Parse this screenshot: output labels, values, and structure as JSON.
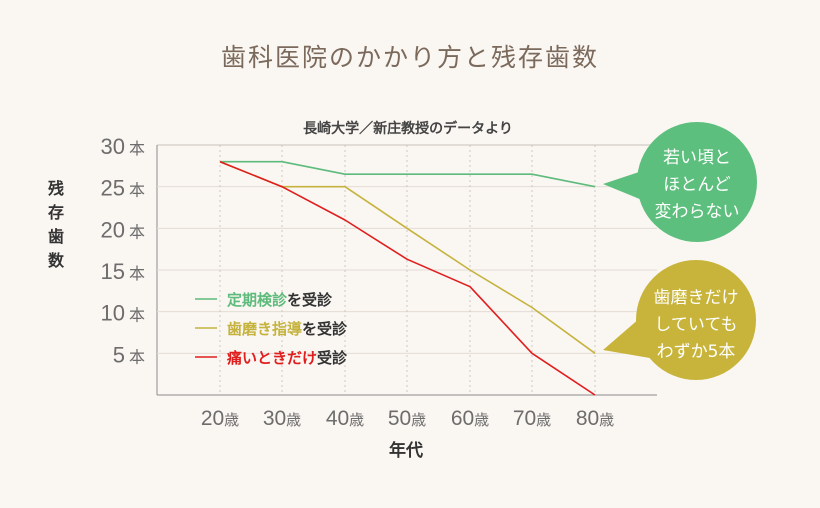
{
  "chart_data": {
    "type": "line",
    "title": "歯科医院のかかり方と残存歯数",
    "subtitle": "長崎大学／新庄教授のデータより",
    "xlabel": "年代",
    "ylabel": "残存歯数",
    "categories": [
      "20歳",
      "30歳",
      "40歳",
      "50歳",
      "60歳",
      "70歳",
      "80歳"
    ],
    "yticks": [
      {
        "num": "30",
        "unit": "本"
      },
      {
        "num": "25",
        "unit": "本"
      },
      {
        "num": "20",
        "unit": "本"
      },
      {
        "num": "15",
        "unit": "本"
      },
      {
        "num": "10",
        "unit": "本"
      },
      {
        "num": "5",
        "unit": "本"
      }
    ],
    "ylim": [
      0,
      30
    ],
    "grid": true,
    "legend_position": "left-bottom",
    "series": [
      {
        "name": "定期検診を受診",
        "label_main": "定期検診",
        "label_suffix": "を受診",
        "color": "#5dbb7b",
        "values": [
          28,
          28,
          26.5,
          26.5,
          26.5,
          26.5,
          25
        ]
      },
      {
        "name": "歯磨き指導を受診",
        "label_main": "歯磨き指導",
        "label_suffix": "を受診",
        "color": "#c5b33d",
        "values": [
          28,
          25,
          25,
          20,
          15,
          10.5,
          5
        ]
      },
      {
        "name": "痛いときだけ受診",
        "label_main": "痛いときだけ",
        "label_suffix": "受診",
        "color": "#e01e1e",
        "values": [
          28,
          25,
          21,
          16.3,
          13,
          5,
          0
        ]
      }
    ],
    "annotations": [
      {
        "lines": [
          "若い頃と",
          "ほとんど",
          "変わらない"
        ],
        "color": "#5dbf7d",
        "series": 0
      },
      {
        "lines": [
          "歯磨きだけ",
          "していても",
          "わずか5本"
        ],
        "color": "#c8b43a",
        "series": 1
      }
    ]
  }
}
